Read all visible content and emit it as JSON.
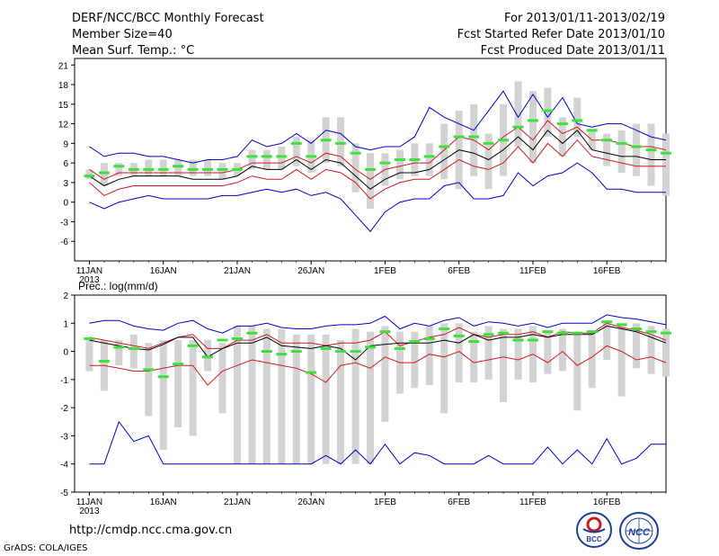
{
  "header": {
    "title": "DERF/NCC/BCC Monthly Forecast",
    "member_size": "Member Size=40",
    "variable": "Mean Surf. Temp.: °C",
    "period": "For 2013/01/11-2013/02/19",
    "started": "Fcst Started Refer Date 2013/01/10",
    "produced": "Fcst Produced Date 2013/01/11"
  },
  "footer": {
    "url": "http://cmdp.ncc.cma.gov.cn",
    "credit": "GrADS: COLA/IGES"
  },
  "logos": {
    "bcc": "BCC",
    "ncc": "NCC"
  },
  "colors": {
    "max_line": "#0000cc",
    "min_line": "#0000cc",
    "quartile_line": "#d01a20",
    "mean_line": "#000000",
    "box": "#d3d3d3",
    "marker": "#3ee03e"
  },
  "chart_data": [
    {
      "type": "box-and-whisker time series",
      "title": "",
      "variable_label": "",
      "x_tick_labels": [
        "11JAN",
        "16JAN",
        "21JAN",
        "26JAN",
        "1FEB",
        "6FEB",
        "11FEB",
        "16FEB"
      ],
      "x_tick_days": [
        1,
        6,
        11,
        16,
        21,
        26,
        31,
        36
      ],
      "year_label": "2013",
      "y_ticks": [
        -6,
        -3,
        0,
        3,
        6,
        9,
        12,
        15,
        18,
        21
      ],
      "ylim": [
        -9,
        22
      ],
      "xlim": [
        0,
        40
      ],
      "days": [
        1,
        2,
        3,
        4,
        5,
        6,
        7,
        8,
        9,
        10,
        11,
        12,
        13,
        14,
        15,
        16,
        17,
        18,
        19,
        20,
        21,
        22,
        23,
        24,
        25,
        26,
        27,
        28,
        29,
        30,
        31,
        32,
        33,
        34,
        35,
        36,
        37,
        38,
        39,
        40
      ],
      "series": [
        {
          "name": "max",
          "values": [
            8.5,
            7,
            7.5,
            7.5,
            7,
            7,
            6.5,
            6,
            6.5,
            6.5,
            7,
            9.5,
            8.5,
            9,
            10.5,
            9,
            11,
            10.5,
            8.5,
            8,
            8.5,
            8.5,
            10,
            14.5,
            13,
            12,
            11,
            14,
            17,
            13,
            16.5,
            13,
            16,
            12,
            11.5,
            12,
            12,
            11,
            10,
            9.5
          ]
        },
        {
          "name": "upper_quartile",
          "values": [
            5,
            3.5,
            4.5,
            4.5,
            4.5,
            4.5,
            4.5,
            4.5,
            4.5,
            4.5,
            5,
            6,
            6,
            6,
            7,
            6,
            7.5,
            7,
            5,
            3.5,
            5,
            5.5,
            6,
            6,
            8,
            10,
            9.5,
            8,
            10,
            11.5,
            9.5,
            12.5,
            10.5,
            11.5,
            9.5,
            9.5,
            9,
            8.5,
            8.5,
            8
          ]
        },
        {
          "name": "mean",
          "values": [
            4,
            2.5,
            3.5,
            4,
            4,
            4,
            4,
            3.5,
            3.5,
            3.5,
            4,
            5.5,
            5,
            5,
            6.5,
            5,
            6.5,
            6,
            4,
            2,
            3.5,
            4.5,
            4.5,
            5,
            6.5,
            8,
            7.5,
            6.5,
            8,
            10,
            8,
            11,
            9,
            11,
            8,
            7.5,
            7,
            7,
            6.5,
            6.5
          ]
        },
        {
          "name": "lower_quartile",
          "values": [
            3,
            1,
            2,
            2.5,
            2.5,
            2.5,
            2.5,
            2.5,
            2.5,
            2.5,
            3,
            4,
            3.5,
            3.5,
            5,
            3.5,
            5,
            4.5,
            3,
            0.5,
            2,
            3,
            3.5,
            3.5,
            5,
            6.5,
            5.5,
            5,
            6,
            8.5,
            6,
            9,
            7,
            9.5,
            7,
            6.5,
            6,
            5.5,
            5.5,
            5.5
          ]
        },
        {
          "name": "min",
          "values": [
            0,
            -1,
            0,
            0.5,
            1,
            0.5,
            0.5,
            0.5,
            0.5,
            1,
            1,
            1.5,
            2,
            1.5,
            2,
            1,
            1.5,
            0.5,
            -2,
            -4.5,
            -1.5,
            0,
            0.5,
            0.5,
            2.5,
            3,
            0.5,
            0.5,
            1,
            4.5,
            2.5,
            4,
            4.5,
            6,
            4.5,
            2,
            2,
            1.5,
            1.5,
            1.5
          ]
        }
      ],
      "boxes": {
        "low": [
          3.5,
          2.5,
          4,
          4,
          4,
          4,
          4,
          4,
          4,
          3.5,
          4,
          5,
          5,
          5,
          5.5,
          4.5,
          6,
          5.5,
          1.5,
          -1,
          2.5,
          3.5,
          4,
          4,
          3.5,
          2,
          4,
          2,
          4,
          8.5,
          6,
          10,
          7,
          10,
          8,
          5.5,
          4.5,
          4,
          2.5,
          1
        ],
        "high": [
          5,
          6,
          6,
          6,
          6.5,
          6.5,
          6.5,
          6.5,
          6.5,
          6,
          6,
          8,
          8,
          8.5,
          10,
          9.5,
          13,
          13,
          9,
          7.5,
          7.5,
          8,
          9,
          9,
          12,
          14,
          15,
          10.5,
          15,
          18.5,
          17,
          17.5,
          13,
          16,
          11,
          10.5,
          11,
          12,
          12,
          10.5
        ]
      },
      "markers": [
        4,
        4.5,
        5.5,
        5,
        5,
        5,
        5.5,
        5,
        5,
        5,
        5,
        7,
        7,
        7,
        9,
        7,
        9.5,
        9,
        7.5,
        5,
        6,
        6.5,
        6.5,
        7,
        8.5,
        10,
        10,
        9,
        9.5,
        11.5,
        12.5,
        14,
        12,
        12.5,
        11,
        9.5,
        9,
        8.5,
        8,
        7.5
      ]
    },
    {
      "type": "box-and-whisker time series",
      "title": "",
      "variable_label": "Prec.: log(mm/d)",
      "x_tick_labels": [
        "11JAN",
        "16JAN",
        "21JAN",
        "26JAN",
        "1FEB",
        "6FEB",
        "11FEB",
        "16FEB"
      ],
      "x_tick_days": [
        1,
        6,
        11,
        16,
        21,
        26,
        31,
        36
      ],
      "year_label": "2013",
      "y_ticks": [
        -5,
        -4,
        -3,
        -2,
        -1,
        0,
        1,
        2
      ],
      "ylim": [
        -5,
        2
      ],
      "xlim": [
        0,
        40
      ],
      "days": [
        1,
        2,
        3,
        4,
        5,
        6,
        7,
        8,
        9,
        10,
        11,
        12,
        13,
        14,
        15,
        16,
        17,
        18,
        19,
        20,
        21,
        22,
        23,
        24,
        25,
        26,
        27,
        28,
        29,
        30,
        31,
        32,
        33,
        34,
        35,
        36,
        37,
        38,
        39,
        40
      ],
      "series": [
        {
          "name": "max",
          "values": [
            1,
            1.1,
            1.1,
            0.9,
            0.8,
            0.75,
            1,
            1.1,
            0.8,
            0.65,
            0.9,
            0.9,
            1,
            0.85,
            0.8,
            0.8,
            0.9,
            0.95,
            0.95,
            1,
            1.25,
            0.8,
            1,
            0.9,
            1.1,
            1.2,
            0.9,
            1.05,
            1,
            0.9,
            1,
            0.85,
            1,
            1,
            1,
            1.3,
            1.2,
            1.15,
            1.05,
            0.95
          ]
        },
        {
          "name": "upper_quartile",
          "values": [
            0.5,
            0.4,
            0.3,
            0.2,
            0.1,
            0.3,
            0.5,
            0.6,
            0.1,
            0.1,
            0.4,
            0.4,
            0.6,
            0.3,
            0.3,
            0.3,
            0.2,
            0.3,
            0.3,
            0.4,
            0.7,
            0.2,
            0.35,
            0.5,
            0.6,
            0.85,
            0.6,
            0.5,
            0.6,
            0.6,
            0.7,
            0.5,
            0.7,
            0.65,
            0.65,
            1,
            0.85,
            0.75,
            0.6,
            0.4
          ]
        },
        {
          "name": "mean",
          "values": [
            0.4,
            0.3,
            0.2,
            0.1,
            0.05,
            0.25,
            0.5,
            0.5,
            -0.2,
            0.1,
            0.3,
            0.3,
            0.5,
            0.2,
            0.15,
            0.1,
            0.2,
            0.1,
            -0.3,
            0.2,
            0.25,
            0.3,
            0.3,
            0.3,
            0.4,
            0.3,
            0.6,
            0.4,
            0.5,
            0.5,
            0.6,
            0.5,
            0.6,
            0.6,
            0.6,
            0.9,
            0.8,
            0.7,
            0.5,
            0.3
          ]
        },
        {
          "name": "lower_quartile",
          "values": [
            -0.5,
            -0.5,
            -0.6,
            -0.7,
            -0.7,
            -0.6,
            -0.5,
            -0.5,
            -1.2,
            -0.7,
            -0.5,
            -0.3,
            -0.4,
            -0.5,
            -0.6,
            -0.8,
            -1.1,
            -0.5,
            -0.4,
            -0.6,
            -0.2,
            -0.4,
            -0.4,
            -0.1,
            -0.2,
            0,
            -0.4,
            -0.3,
            -0.2,
            -0.3,
            -0.1,
            -0.4,
            0,
            -0.5,
            -0.2,
            0.2,
            0,
            -0.3,
            -0.2,
            -0.4
          ]
        },
        {
          "name": "min",
          "values": [
            -4,
            -4,
            -2.5,
            -3.2,
            -3,
            -4,
            -4,
            -4,
            -4,
            -4,
            -4,
            -4,
            -4,
            -4,
            -4,
            -4,
            -3.7,
            -4,
            -3.5,
            -4,
            -3.3,
            -4,
            -3.6,
            -3.7,
            -4,
            -4,
            -4,
            -3.7,
            -4,
            -4,
            -4,
            -3.4,
            -4,
            -3.5,
            -4,
            -3.1,
            -4,
            -3.8,
            -3.3,
            -3.3
          ]
        }
      ],
      "boxes": {
        "low": [
          -0.7,
          -1.4,
          -0.5,
          -0.6,
          -2.3,
          -3.5,
          -2.7,
          -3,
          -0.7,
          -2.2,
          -4,
          -4,
          -4,
          -4,
          -4,
          -4,
          -4,
          -4,
          -4,
          -4,
          -2.5,
          -1.5,
          -1.3,
          -1.2,
          -2.2,
          -1.1,
          -1.1,
          -1,
          -1.8,
          -1,
          -1.1,
          -0.8,
          -0.7,
          -2.1,
          -1.3,
          -0.3,
          -1.6,
          -0.6,
          -0.8,
          -0.9
        ],
        "high": [
          0.4,
          0.4,
          0.4,
          0.6,
          0.3,
          0.4,
          0.4,
          0.4,
          0.4,
          0.3,
          0.9,
          0.9,
          0.8,
          0.8,
          0.6,
          0.6,
          0.6,
          0.4,
          0.8,
          0.7,
          0.9,
          0.7,
          0.7,
          0.9,
          1.0,
          1.0,
          0.7,
          0.9,
          0.8,
          0.8,
          0.9,
          0.7,
          0.8,
          0.7,
          0.7,
          1.0,
          0.9,
          1.0,
          0.9,
          0.8
        ]
      },
      "markers": [
        0.45,
        -0.35,
        0.15,
        0.1,
        -0.65,
        -0.9,
        -0.45,
        0.2,
        -0.2,
        0.4,
        0.45,
        0.65,
        0,
        -0.1,
        0,
        -0.75,
        0.1,
        0,
        0,
        0.15,
        0.7,
        0.1,
        0.35,
        0.45,
        0.8,
        0.55,
        0.35,
        0.6,
        0.65,
        0.4,
        0.4,
        0.7,
        0.65,
        0.65,
        0.7,
        1.05,
        0.95,
        0.8,
        0.7,
        0.65
      ]
    }
  ]
}
